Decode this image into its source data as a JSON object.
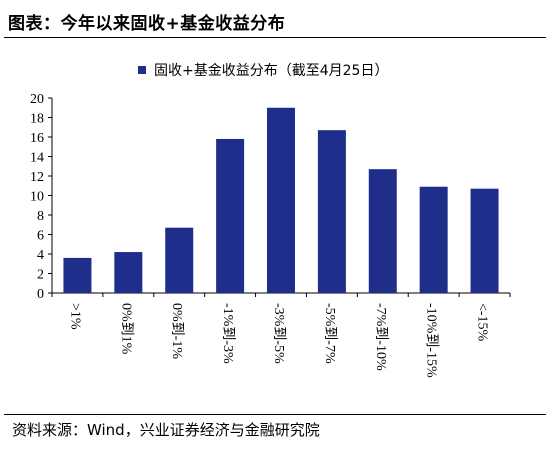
{
  "figure": {
    "title": "图表：今年以来固收+基金收益分布",
    "source": "资料来源：Wind，兴业证券经济与金融研究院"
  },
  "colors": {
    "bar": "#1f2e8a",
    "axis": "#000000"
  },
  "chart_data": {
    "type": "bar",
    "title": "",
    "xlabel": "",
    "ylabel": "",
    "categories": [
      ">1%",
      "0%到1%",
      "0%到-1%",
      "-1%到-3%",
      "-3%到-5%",
      "-5%到-7%",
      "-7%到-10%",
      "-10%到-15%",
      "<-15%"
    ],
    "series": [
      {
        "name": "固收+基金收益分布（截至4月25日）",
        "values": [
          3.6,
          4.2,
          6.7,
          15.8,
          19.0,
          16.7,
          12.7,
          10.9,
          10.7
        ]
      }
    ],
    "ylim": [
      0,
      20
    ],
    "yticks": [
      0,
      2,
      4,
      6,
      8,
      10,
      12,
      14,
      16,
      18,
      20
    ],
    "grid": false,
    "legend_position": "top-center"
  }
}
